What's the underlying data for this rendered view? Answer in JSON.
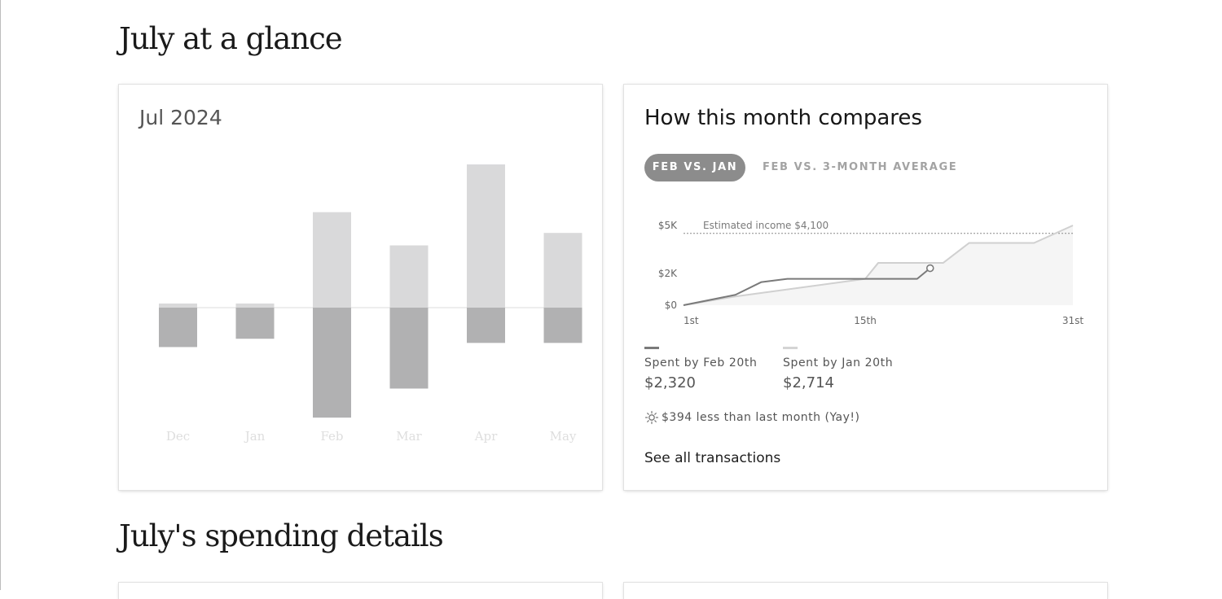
{
  "page": {
    "section1_title": "July at a glance",
    "section2_title": "July's spending details"
  },
  "overview_card": {
    "month_label": "Jul 2024"
  },
  "compare_card": {
    "title": "How this month compares",
    "tabs": [
      {
        "label": "FEB VS. JAN",
        "active": true
      },
      {
        "label": "FEB VS. 3-MONTH AVERAGE",
        "active": false
      }
    ],
    "legend": [
      {
        "label": "Spent by Feb 20th",
        "value": "$2,320",
        "color": "#7a7a7a"
      },
      {
        "label": "Spent by Jan 20th",
        "value": "$2,714",
        "color": "#d4d4d4"
      }
    ],
    "delta_text": "$394 less than last month (Yay!)",
    "delta_icon": "sun-icon",
    "see_all_link": "See all transactions"
  },
  "chart_data": [
    {
      "type": "bar",
      "categories": [
        "Dec",
        "Jan",
        "Feb",
        "Mar",
        "Apr",
        "May"
      ],
      "series": [
        {
          "values": [
            0.2,
            0.2,
            4.6,
            3.0,
            6.9,
            3.6
          ],
          "color": "#d9d9da"
        },
        {
          "values": [
            -1.9,
            -1.5,
            -5.3,
            -3.9,
            -1.7,
            -1.7
          ],
          "color": "#b1b1b2"
        }
      ],
      "ylim": [
        -6,
        8
      ],
      "grid": false
    },
    {
      "type": "line",
      "x_ticks": [
        "1st",
        "15th",
        "31st"
      ],
      "y_ticks": [
        "$0",
        "$2K",
        "$5K"
      ],
      "ylim": [
        0,
        5000
      ],
      "xlim": [
        1,
        31
      ],
      "series": [
        {
          "name": "Spent by Feb 20th",
          "color": "#7a7a7a",
          "x": [
            1,
            5,
            7,
            9,
            15,
            19,
            20
          ],
          "y": [
            0,
            650,
            1450,
            1650,
            1650,
            1650,
            2320
          ]
        },
        {
          "name": "Spent by Jan 20th",
          "color": "#d0d0d0",
          "x": [
            1,
            5,
            15,
            16,
            21,
            23,
            28,
            31
          ],
          "y": [
            0,
            550,
            1650,
            2650,
            2650,
            3900,
            3900,
            5000
          ]
        }
      ],
      "annotations": [
        {
          "text": "Estimated income $4,100",
          "y": 4500
        }
      ]
    }
  ]
}
